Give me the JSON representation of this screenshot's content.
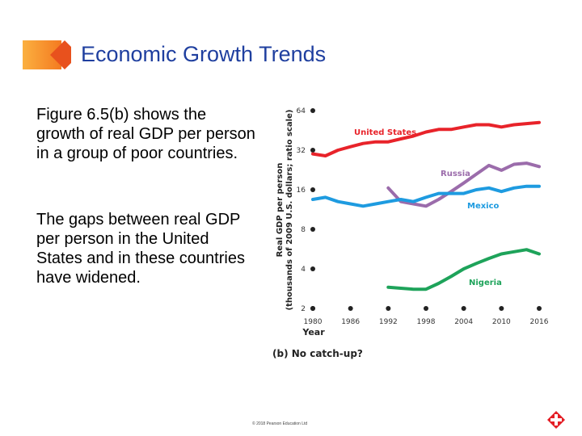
{
  "slide": {
    "title": "Economic Growth Trends",
    "paragraphs": [
      "Figure 6.5(b) shows the growth of real GDP per person in a group of poor countries.",
      "The gaps between real GDP per person in the United States and in these countries have widened."
    ],
    "copyright": "© 2018 Pearson Education Ltd"
  },
  "chart_data": {
    "type": "line",
    "caption": "(b) No catch-up?",
    "xlabel": "Year",
    "ylabel": [
      "Real GDP per person",
      "(thousands of 2009 U.S. dollars; ratio scale)"
    ],
    "yscale": "log",
    "x": [
      1980,
      1982,
      1984,
      1986,
      1988,
      1990,
      1992,
      1994,
      1996,
      1998,
      2000,
      2002,
      2004,
      2006,
      2008,
      2010,
      2012,
      2014,
      2016
    ],
    "xlim": [
      1980,
      2016
    ],
    "xticks": [
      1980,
      1986,
      1992,
      1998,
      2004,
      2010,
      2016
    ],
    "ylim": [
      2,
      64
    ],
    "yticks": [
      2,
      4,
      8,
      16,
      32,
      64
    ],
    "series": [
      {
        "name": "United States",
        "color": "#e8232a",
        "values": [
          30,
          29,
          32,
          34,
          36,
          37,
          37,
          39,
          41,
          44,
          46,
          46,
          48,
          50,
          50,
          48,
          50,
          51,
          52
        ]
      },
      {
        "name": "Russia",
        "color": "#9b6cab",
        "values": [
          null,
          null,
          null,
          null,
          null,
          null,
          16.5,
          13,
          12.5,
          12,
          13.5,
          15.5,
          18,
          21,
          24.5,
          22.5,
          25,
          25.5,
          24
        ]
      },
      {
        "name": "Mexico",
        "color": "#1e9be0",
        "values": [
          13.5,
          14,
          13,
          12.5,
          12,
          12.5,
          13,
          13.5,
          13,
          14,
          15,
          15,
          15,
          16,
          16.5,
          15.5,
          16.5,
          17,
          17
        ]
      },
      {
        "name": "Nigeria",
        "color": "#1ea35a",
        "values": [
          null,
          null,
          null,
          null,
          null,
          null,
          2.9,
          2.85,
          2.8,
          2.8,
          3.1,
          3.5,
          4.0,
          4.4,
          4.8,
          5.2,
          5.4,
          5.6,
          5.2
        ]
      }
    ]
  }
}
